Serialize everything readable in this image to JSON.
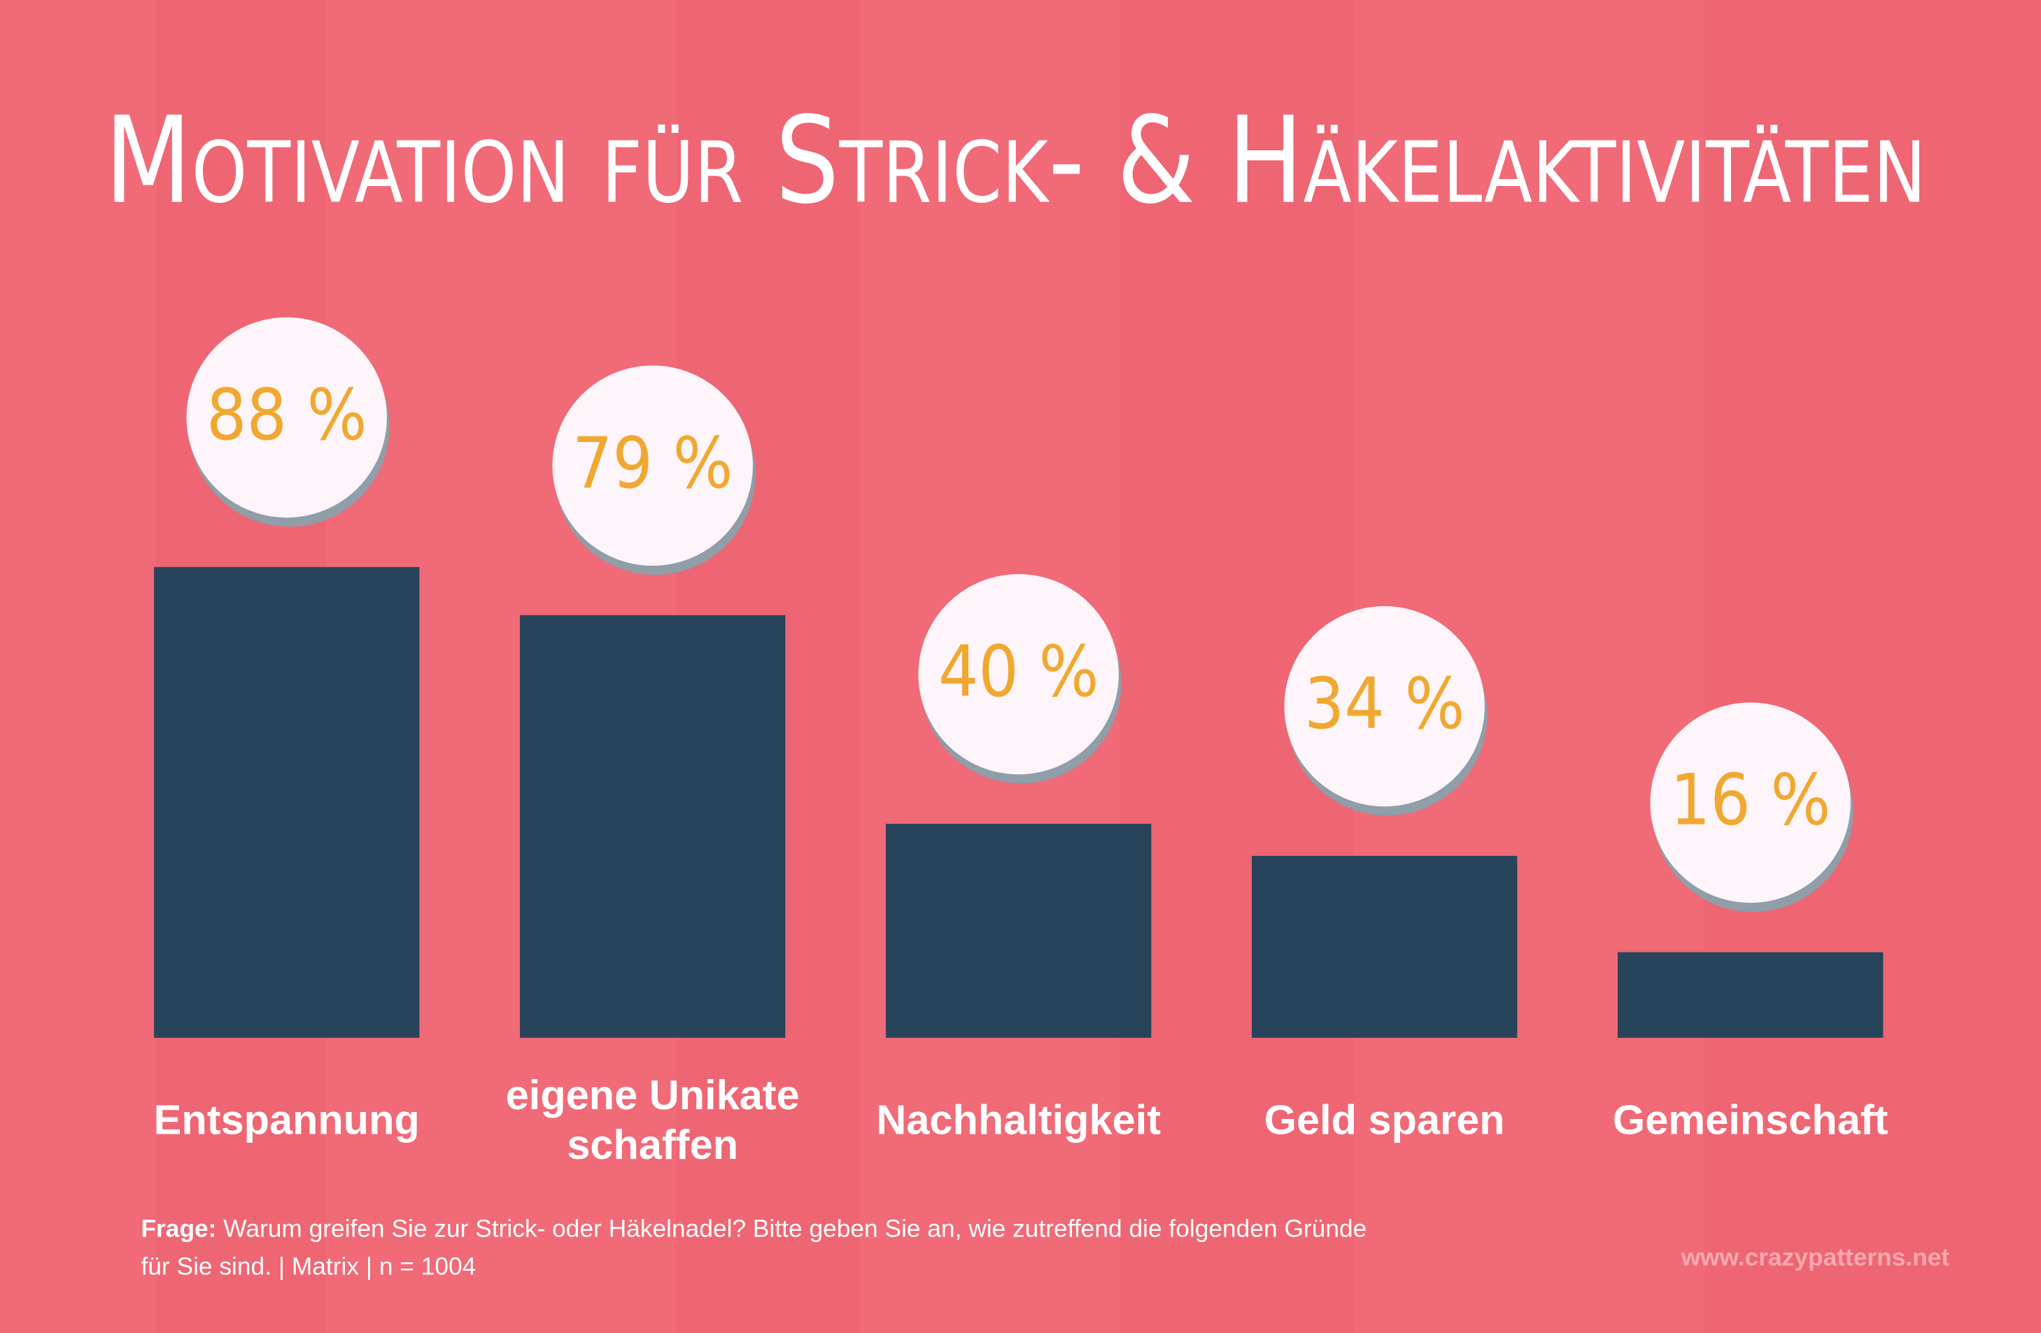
{
  "chart_data": {
    "type": "bar",
    "title": "Motivation für Strick- & Häkelaktivitäten",
    "categories": [
      "Entspannung",
      "eigene Unikate\nschaffen",
      "Nachhaltigkeit",
      "Geld sparen",
      "Gemeinschaft"
    ],
    "values": [
      88,
      79,
      40,
      34,
      16
    ],
    "value_labels": [
      "88 %",
      "79 %",
      "40 %",
      "34 %",
      "16 %"
    ],
    "color": "#27445a",
    "footnote_label": "Frage:",
    "footnote": "Warum greifen Sie zur Strick- oder Häkelnadel? Bitte geben Sie an, wie zutreffend die folgenden Gründe für Sie sind. | Matrix | n = 1004",
    "source": "www.crazypatterns.net"
  }
}
